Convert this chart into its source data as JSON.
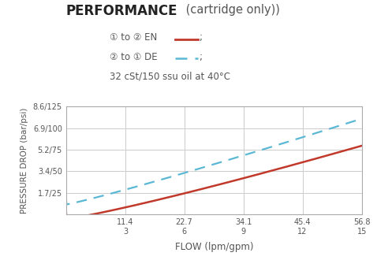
{
  "title_bold": "PERFORMANCE",
  "title_normal": " (cartridge only))",
  "legend_line1_pre": "① to ② EN ",
  "legend_line2_pre": "② to ① DE ",
  "legend_suffix": ";",
  "oil_label": "32 cSt/150 ssu oil at 40°C",
  "xlabel": "FLOW (lpm/gpm)",
  "ylabel": "PRESSURE DROP (bar/psi)",
  "xtick_top": [
    11.4,
    22.7,
    34.1,
    45.4,
    56.8
  ],
  "xtick_bot": [
    "3",
    "6",
    "9",
    "12",
    "15"
  ],
  "ytick_labels": [
    "1.7/25",
    "3.4/50",
    "5.2/75",
    "6.9/100",
    "8.6/125"
  ],
  "ytick_vals": [
    25,
    50,
    75,
    100,
    125
  ],
  "xmin": 0,
  "xmax": 56.8,
  "ymin": 0,
  "ymax": 125,
  "color_red": "#c0392b",
  "color_blue": "#5bb8d4",
  "background": "#ffffff",
  "grid_color": "#cccccc",
  "text_color": "#555555",
  "red_x": [
    0,
    11.4,
    22.7,
    34.1,
    45.4,
    56.8
  ],
  "red_y": [
    5,
    8,
    25,
    42,
    60,
    80
  ],
  "blue_x": [
    0,
    11.4,
    22.7,
    34.1,
    45.4,
    56.8
  ],
  "blue_y": [
    20,
    28,
    50,
    68,
    88,
    112
  ]
}
